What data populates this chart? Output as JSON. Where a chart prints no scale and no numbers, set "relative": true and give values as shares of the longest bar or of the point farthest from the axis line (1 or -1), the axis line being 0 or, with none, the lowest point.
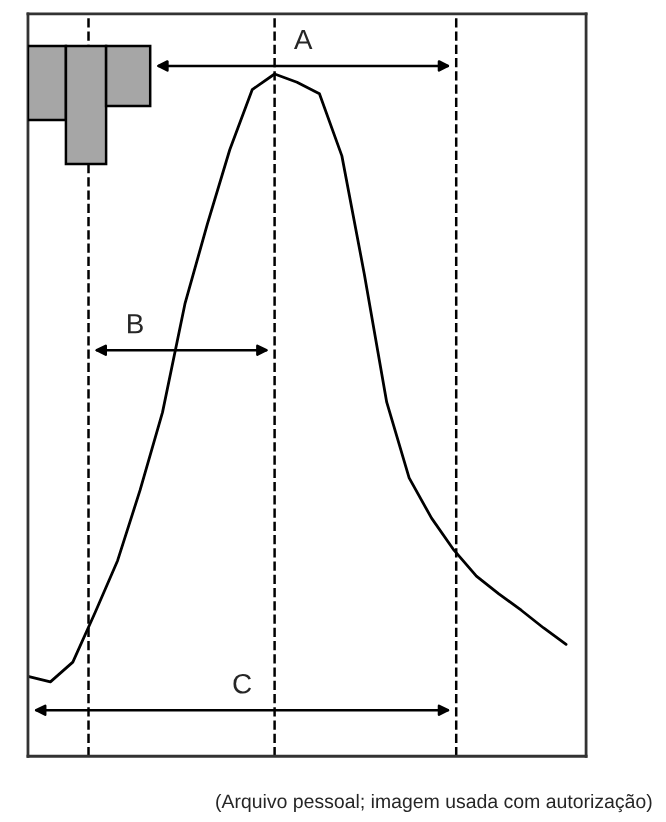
{
  "chart_data": {
    "type": "line",
    "relative": true,
    "categories": [
      null,
      null,
      null,
      null,
      null,
      null,
      null,
      null,
      null,
      null,
      null,
      null,
      null,
      null,
      null,
      null,
      null,
      null,
      null,
      null,
      null,
      null,
      null,
      null,
      null
    ],
    "series": [
      {
        "color": "#000000",
        "values": [
          0.117,
          0.109,
          0.138,
          0.211,
          0.287,
          0.39,
          0.504,
          0.663,
          0.78,
          0.889,
          0.977,
          1.0,
          0.988,
          0.971,
          0.88,
          0.707,
          0.519,
          0.408,
          0.349,
          0.302,
          0.264,
          0.238,
          0.214,
          0.188,
          0.164
        ]
      }
    ],
    "annotations": [
      "A",
      "B",
      "C",
      "(Arquivo pessoal; imagem usada com autorização)"
    ],
    "legend": false,
    "marker": "none",
    "line_style": "solid"
  }
}
